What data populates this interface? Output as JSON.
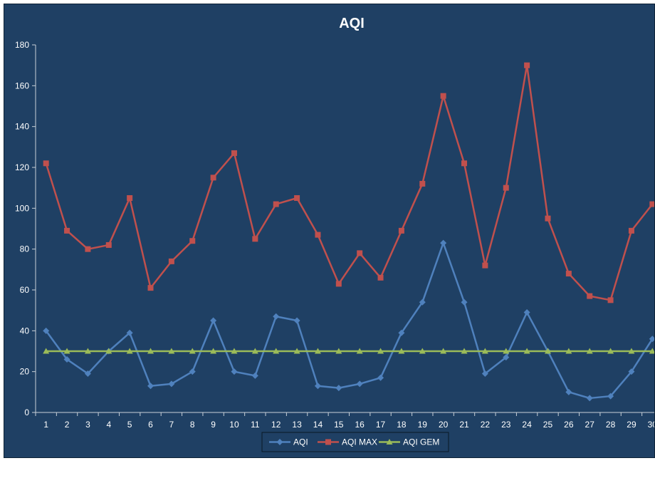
{
  "chart_data": {
    "type": "line",
    "title": "AQI",
    "xlabel": "",
    "ylabel": "",
    "ylim": [
      0,
      180
    ],
    "yticks": [
      0,
      20,
      40,
      60,
      80,
      100,
      120,
      140,
      160,
      180
    ],
    "x": [
      1,
      2,
      3,
      4,
      5,
      6,
      7,
      8,
      9,
      10,
      11,
      12,
      13,
      14,
      15,
      16,
      17,
      18,
      19,
      20,
      21,
      22,
      23,
      24,
      25,
      26,
      27,
      28,
      29,
      30
    ],
    "grid": false,
    "legend": "bottom-center",
    "series": [
      {
        "name": "AQI",
        "color": "#4f81bd",
        "marker": "diamond",
        "values": [
          40,
          26,
          19,
          30,
          39,
          13,
          14,
          20,
          45,
          20,
          18,
          47,
          45,
          13,
          12,
          14,
          17,
          39,
          54,
          83,
          54,
          19,
          27,
          49,
          30,
          10,
          7,
          8,
          20,
          36
        ]
      },
      {
        "name": "AQI MAX",
        "color": "#c0504d",
        "marker": "square",
        "values": [
          122,
          89,
          80,
          82,
          105,
          61,
          74,
          84,
          115,
          127,
          85,
          102,
          105,
          87,
          63,
          78,
          66,
          89,
          112,
          155,
          122,
          72,
          110,
          170,
          95,
          68,
          57,
          55,
          89,
          102
        ]
      },
      {
        "name": "AQI GEM",
        "color": "#9bbb59",
        "marker": "triangle",
        "values": [
          30,
          30,
          30,
          30,
          30,
          30,
          30,
          30,
          30,
          30,
          30,
          30,
          30,
          30,
          30,
          30,
          30,
          30,
          30,
          30,
          30,
          30,
          30,
          30,
          30,
          30,
          30,
          30,
          30,
          30
        ]
      }
    ]
  }
}
